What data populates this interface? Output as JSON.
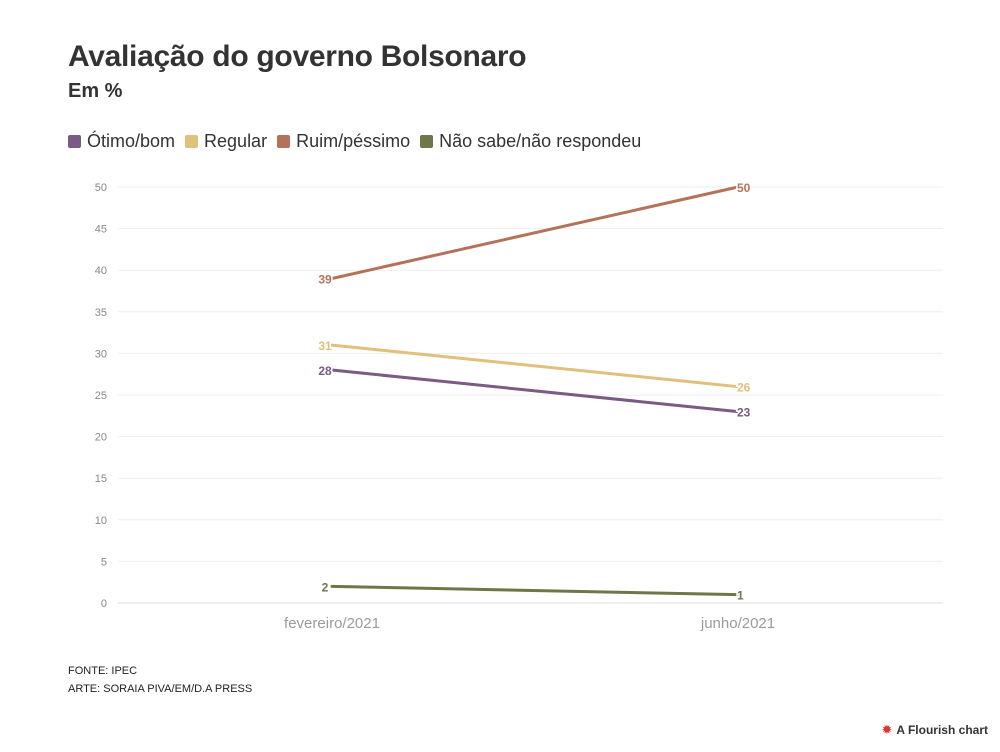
{
  "title": "Avaliação do governo Bolsonaro",
  "subtitle": "Em %",
  "chart_data": {
    "type": "line",
    "categories": [
      "fevereiro/2021",
      "junho/2021"
    ],
    "series": [
      {
        "name": "Ótimo/bom",
        "color": "#7b5a83",
        "values": [
          28,
          23
        ]
      },
      {
        "name": "Regular",
        "color": "#e1bf7d",
        "values": [
          31,
          26
        ]
      },
      {
        "name": "Ruim/péssimo",
        "color": "#b47259",
        "values": [
          39,
          50
        ]
      },
      {
        "name": "Não sabe/não respondeu",
        "color": "#6e7747",
        "values": [
          2,
          1
        ]
      }
    ],
    "ylim": [
      0,
      50
    ],
    "yticks": [
      0,
      5,
      10,
      15,
      20,
      25,
      30,
      35,
      40,
      45,
      50
    ],
    "grid": true,
    "legend": "top-left"
  },
  "footer": {
    "source": "FONTE: IPEC",
    "art": "ARTE: SORAIA PIVA/EM/D.A PRESS"
  },
  "credit": "A Flourish chart"
}
